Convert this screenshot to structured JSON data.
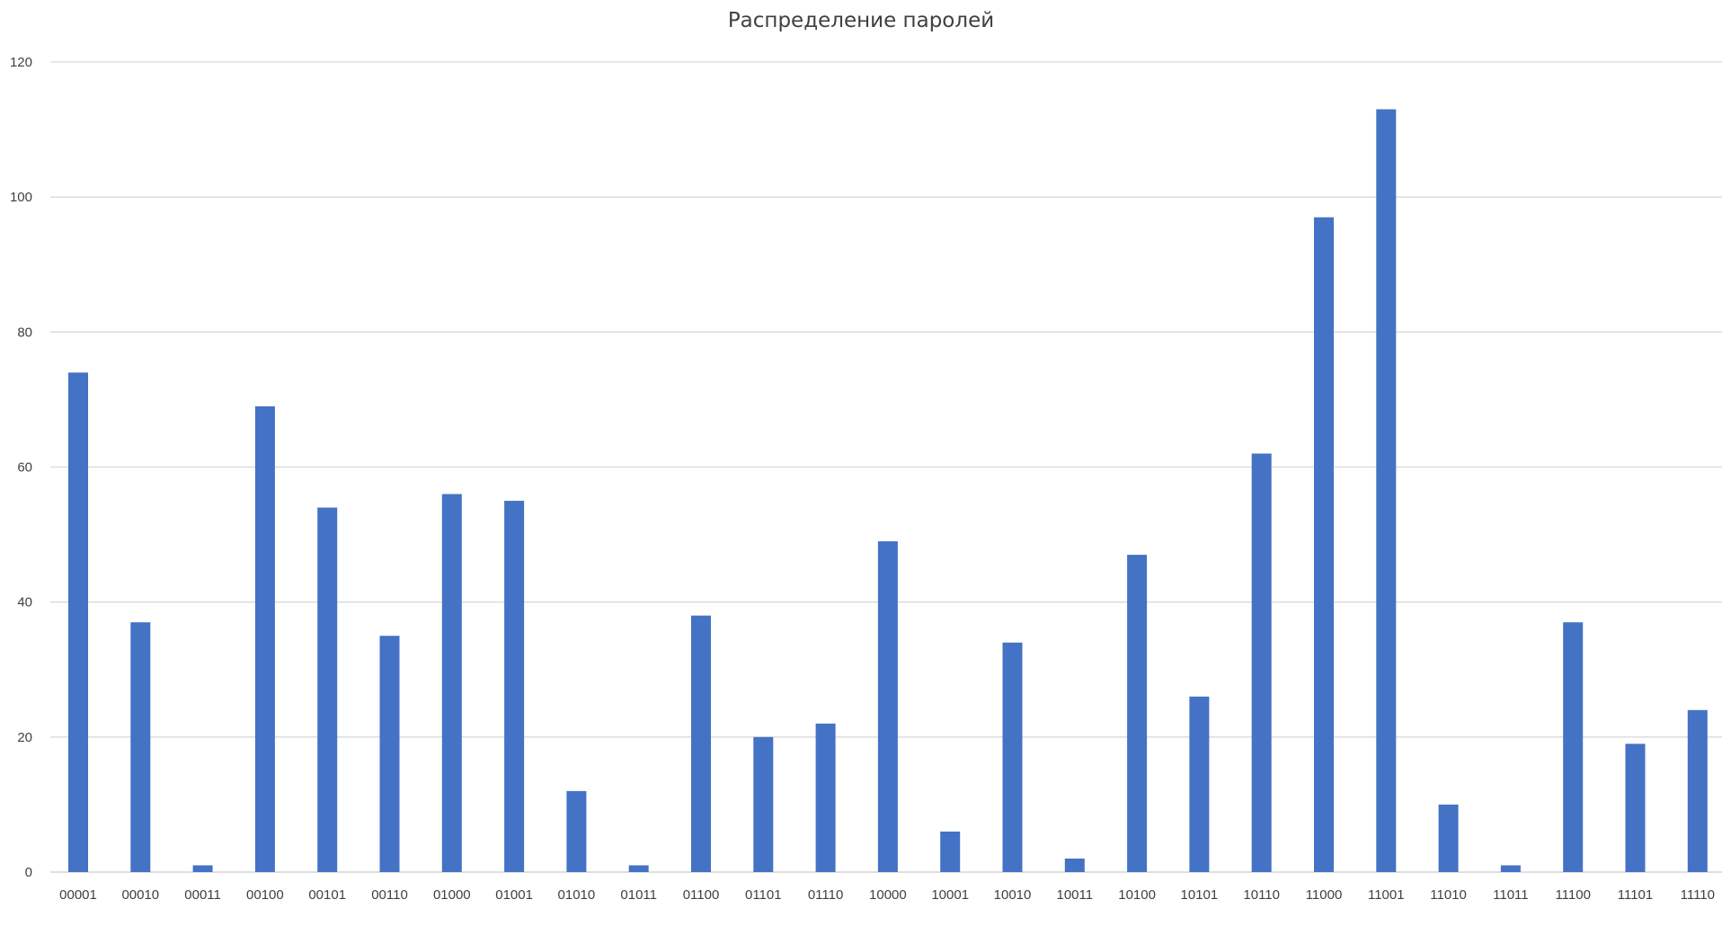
{
  "chart_data": {
    "type": "bar",
    "title": "Распределение паролей",
    "xlabel": "",
    "ylabel": "",
    "ylim": [
      0,
      120
    ],
    "yticks": [
      0,
      20,
      40,
      60,
      80,
      100,
      120
    ],
    "grid": true,
    "legend": "none",
    "bar_color": "#4472c4",
    "grid_color": "#d9d9d9",
    "categories": [
      "00001",
      "00010",
      "00011",
      "00100",
      "00101",
      "00110",
      "01000",
      "01001",
      "01010",
      "01011",
      "01100",
      "01101",
      "01110",
      "10000",
      "10001",
      "10010",
      "10011",
      "10100",
      "10101",
      "10110",
      "11000",
      "11001",
      "11010",
      "11011",
      "11100",
      "11101",
      "11110"
    ],
    "values": [
      74,
      37,
      1,
      69,
      54,
      35,
      56,
      55,
      12,
      1,
      38,
      20,
      22,
      49,
      6,
      34,
      2,
      47,
      26,
      62,
      97,
      113,
      10,
      1,
      37,
      19,
      24
    ]
  }
}
